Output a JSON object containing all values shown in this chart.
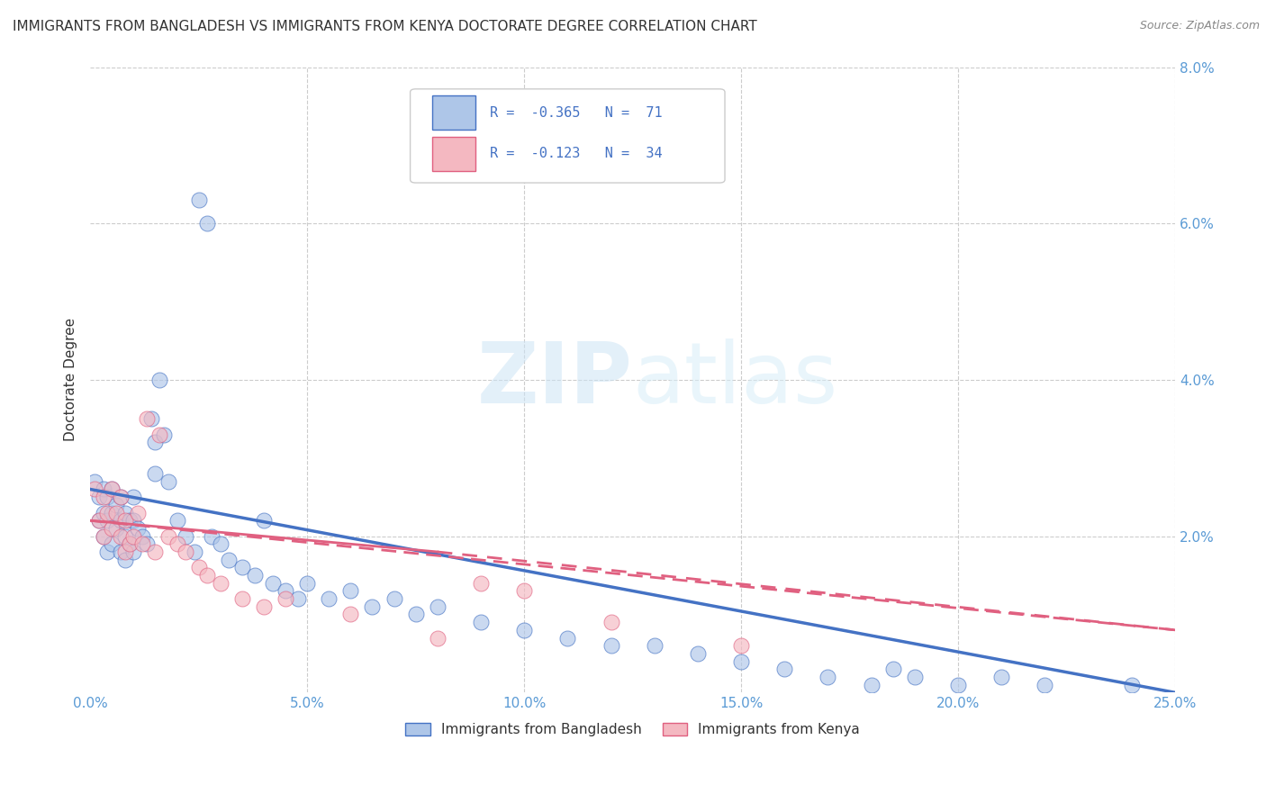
{
  "title": "IMMIGRANTS FROM BANGLADESH VS IMMIGRANTS FROM KENYA DOCTORATE DEGREE CORRELATION CHART",
  "source": "Source: ZipAtlas.com",
  "ylabel": "Doctorate Degree",
  "xlim": [
    0.0,
    0.25
  ],
  "ylim": [
    0.0,
    0.08
  ],
  "xticks": [
    0.0,
    0.05,
    0.1,
    0.15,
    0.2,
    0.25
  ],
  "yticks": [
    0.0,
    0.02,
    0.04,
    0.06,
    0.08
  ],
  "xtick_labels": [
    "0.0%",
    "5.0%",
    "10.0%",
    "15.0%",
    "20.0%",
    "25.0%"
  ],
  "ytick_labels": [
    "",
    "2.0%",
    "4.0%",
    "6.0%",
    "8.0%"
  ],
  "legend1_label": "Immigrants from Bangladesh",
  "legend2_label": "Immigrants from Kenya",
  "R1": -0.365,
  "N1": 71,
  "R2": -0.123,
  "N2": 34,
  "color1": "#aec6e8",
  "color2": "#f4b8c1",
  "line_color1": "#4472c4",
  "line_color2": "#e06080",
  "watermark_zip": "ZIP",
  "watermark_atlas": "atlas",
  "background_color": "#ffffff",
  "title_fontsize": 11,
  "scatter1_x": [
    0.001,
    0.002,
    0.002,
    0.003,
    0.003,
    0.003,
    0.004,
    0.004,
    0.004,
    0.005,
    0.005,
    0.005,
    0.006,
    0.006,
    0.007,
    0.007,
    0.007,
    0.008,
    0.008,
    0.008,
    0.009,
    0.009,
    0.01,
    0.01,
    0.01,
    0.011,
    0.012,
    0.013,
    0.014,
    0.015,
    0.015,
    0.016,
    0.017,
    0.018,
    0.02,
    0.022,
    0.024,
    0.025,
    0.027,
    0.028,
    0.03,
    0.032,
    0.035,
    0.038,
    0.04,
    0.042,
    0.045,
    0.048,
    0.05,
    0.055,
    0.06,
    0.065,
    0.07,
    0.075,
    0.08,
    0.09,
    0.1,
    0.11,
    0.12,
    0.13,
    0.14,
    0.15,
    0.16,
    0.17,
    0.18,
    0.185,
    0.19,
    0.2,
    0.21,
    0.22,
    0.24
  ],
  "scatter1_y": [
    0.027,
    0.025,
    0.022,
    0.026,
    0.023,
    0.02,
    0.025,
    0.022,
    0.018,
    0.026,
    0.023,
    0.019,
    0.024,
    0.021,
    0.025,
    0.022,
    0.018,
    0.023,
    0.02,
    0.017,
    0.022,
    0.019,
    0.025,
    0.022,
    0.018,
    0.021,
    0.02,
    0.019,
    0.035,
    0.032,
    0.028,
    0.04,
    0.033,
    0.027,
    0.022,
    0.02,
    0.018,
    0.063,
    0.06,
    0.02,
    0.019,
    0.017,
    0.016,
    0.015,
    0.022,
    0.014,
    0.013,
    0.012,
    0.014,
    0.012,
    0.013,
    0.011,
    0.012,
    0.01,
    0.011,
    0.009,
    0.008,
    0.007,
    0.006,
    0.006,
    0.005,
    0.004,
    0.003,
    0.002,
    0.001,
    0.003,
    0.002,
    0.001,
    0.002,
    0.001,
    0.001
  ],
  "scatter2_x": [
    0.001,
    0.002,
    0.003,
    0.003,
    0.004,
    0.005,
    0.005,
    0.006,
    0.007,
    0.007,
    0.008,
    0.008,
    0.009,
    0.01,
    0.011,
    0.012,
    0.013,
    0.015,
    0.016,
    0.018,
    0.02,
    0.022,
    0.025,
    0.027,
    0.03,
    0.035,
    0.04,
    0.045,
    0.06,
    0.08,
    0.09,
    0.1,
    0.12,
    0.15
  ],
  "scatter2_y": [
    0.026,
    0.022,
    0.025,
    0.02,
    0.023,
    0.026,
    0.021,
    0.023,
    0.025,
    0.02,
    0.022,
    0.018,
    0.019,
    0.02,
    0.023,
    0.019,
    0.035,
    0.018,
    0.033,
    0.02,
    0.019,
    0.018,
    0.016,
    0.015,
    0.014,
    0.012,
    0.011,
    0.012,
    0.01,
    0.007,
    0.014,
    0.013,
    0.009,
    0.006
  ],
  "line1_x0": 0.0,
  "line1_y0": 0.026,
  "line1_x1": 0.25,
  "line1_y1": 0.0,
  "line2_x0": 0.0,
  "line2_y0": 0.022,
  "line2_x1": 0.25,
  "line2_y1": 0.008
}
